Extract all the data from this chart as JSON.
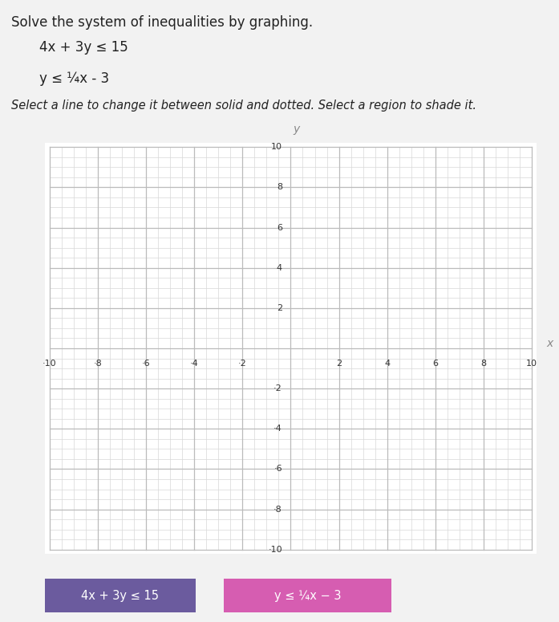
{
  "title_line1": "Solve the system of inequalities by graphing.",
  "eq1_text": "4x + 3y ≤ 15",
  "eq2_text": "y ≤ ¼x - 3",
  "instruction": "Select a line to change it between solid and dotted. Select a region to shade it.",
  "xmin": -10,
  "xmax": 10,
  "ymin": -10,
  "ymax": 10,
  "minor_grid_step": 0.5,
  "major_grid_step": 2,
  "minor_grid_color": "#d8d8d8",
  "major_grid_color": "#bbbbbb",
  "axis_color": "#888888",
  "bg_color": "#ffffff",
  "page_bg": "#f2f2f2",
  "tick_labels_even": [
    -10,
    -8,
    -6,
    -4,
    -2,
    2,
    4,
    6,
    8,
    10
  ],
  "legend_btn1_text": "4x + 3y ≤ 15",
  "legend_btn1_bg": "#6b5b9e",
  "legend_btn2_text": "y ≤ ¼x − 3",
  "legend_btn2_bg": "#d65db1",
  "legend_text_color": "#ffffff"
}
